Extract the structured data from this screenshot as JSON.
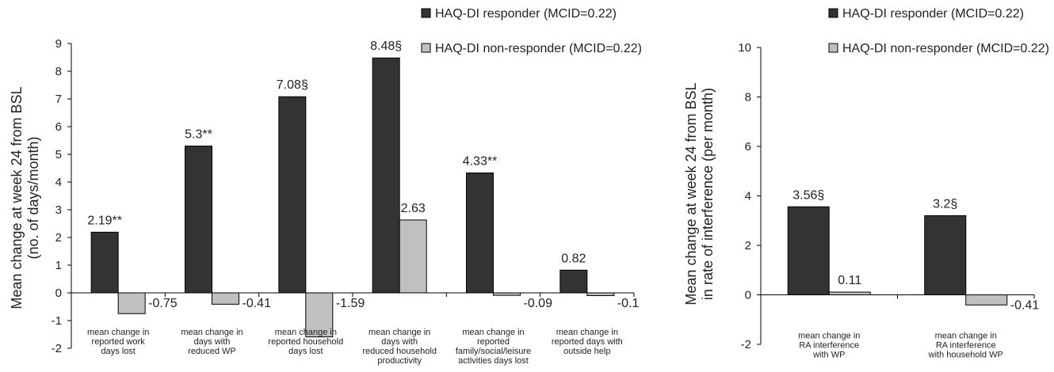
{
  "chart_data": [
    {
      "type": "bar",
      "title": "",
      "xlabel": "",
      "ylabel": "Mean change at week 24 from BSL\n(no. of days/month)",
      "ylim": [
        -2,
        9
      ],
      "yticks": [
        -2,
        -1,
        0,
        1,
        2,
        3,
        4,
        5,
        6,
        7,
        8,
        9
      ],
      "grid": false,
      "legend_position": "top-right",
      "categories": [
        "mean change in\nreported work\ndays lost",
        "mean change in\ndays with\nreduced WP",
        "mean change in\nreported household\ndays lost",
        "mean change in\ndays with\nreduced household\nproductivity",
        "mean change in\nreported\nfamily/social/leisure\nactivities days lost",
        "mean change in\nreported days with\noutside help"
      ],
      "series": [
        {
          "name": "HAQ-DI responder (MCID=0.22)",
          "color": "#333333",
          "values": [
            2.19,
            5.3,
            7.08,
            8.48,
            4.33,
            0.82
          ],
          "labels": [
            "2.19**",
            "5.3**",
            "7.08§",
            "8.48§",
            "4.33**",
            "0.82"
          ]
        },
        {
          "name": "HAQ-DI non-responder (MCID=0.22)",
          "color": "#c0c0c0",
          "values": [
            -0.75,
            -0.41,
            -1.59,
            2.63,
            -0.09,
            -0.1
          ],
          "labels": [
            "-0.75",
            "-0.41",
            "-1.59",
            "2.63",
            "-0.09",
            "-0.1"
          ]
        }
      ]
    },
    {
      "type": "bar",
      "title": "",
      "xlabel": "",
      "ylabel": "Mean change at week 24 from BSL\nin rate of interference (per month)",
      "ylim": [
        -2,
        10
      ],
      "yticks": [
        -2,
        0,
        2,
        4,
        6,
        8,
        10
      ],
      "grid": false,
      "legend_position": "top-right",
      "categories": [
        "mean change in\nRA interference\nwith WP",
        "mean change in\nRA interference\nwith household WP"
      ],
      "series": [
        {
          "name": "HAQ-DI responder (MCID=0.22)",
          "color": "#333333",
          "values": [
            3.56,
            3.2
          ],
          "labels": [
            "3.56§",
            "3.2§"
          ]
        },
        {
          "name": "HAQ-DI non-responder (MCID=0.22)",
          "color": "#c0c0c0",
          "values": [
            0.11,
            -0.41
          ],
          "labels": [
            "0.11",
            "-0.41"
          ]
        }
      ]
    }
  ]
}
